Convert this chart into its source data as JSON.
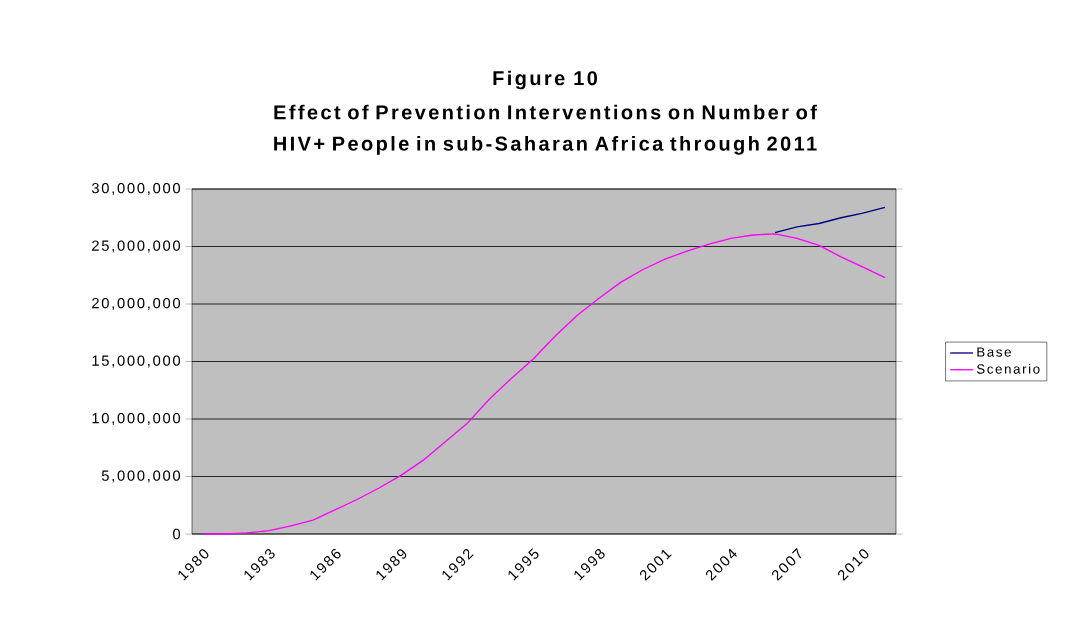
{
  "chart_data": {
    "type": "line",
    "title": "Figure 10",
    "subtitle": "Effect of Prevention Interventions on Number of HIV+ People in sub-Saharan Africa through 2011",
    "categories": [
      "1980",
      null,
      null,
      "1983",
      null,
      null,
      "1986",
      null,
      null,
      "1989",
      null,
      null,
      "1992",
      null,
      null,
      "1995",
      null,
      null,
      "1998",
      null,
      null,
      "2001",
      null,
      null,
      "2004",
      null,
      null,
      "2007",
      null,
      null,
      "2010",
      null
    ],
    "series": [
      {
        "name": "Base",
        "color": "#000080",
        "values": [
          null,
          null,
          null,
          null,
          null,
          null,
          null,
          null,
          null,
          null,
          null,
          null,
          null,
          null,
          null,
          null,
          null,
          null,
          null,
          null,
          null,
          null,
          null,
          null,
          null,
          null,
          26200000,
          26700000,
          27000000,
          27500000,
          27900000,
          28400000
        ]
      },
      {
        "name": "Scenario",
        "color": "#ff00ff",
        "values": [
          0,
          0,
          100000,
          300000,
          700000,
          1200000,
          2100000,
          3000000,
          4000000,
          5100000,
          6400000,
          8000000,
          9600000,
          11700000,
          13500000,
          15200000,
          17200000,
          19000000,
          20500000,
          21900000,
          23000000,
          23900000,
          24600000,
          25200000,
          25700000,
          26000000,
          26100000,
          25700000,
          25100000,
          24100000,
          23200000,
          22300000
        ]
      }
    ],
    "ylim": [
      0,
      30000000
    ],
    "yticks": [
      {
        "value": 0,
        "label": "0"
      },
      {
        "value": 5000000,
        "label": "5,000,000"
      },
      {
        "value": 10000000,
        "label": "10,000,000"
      },
      {
        "value": 15000000,
        "label": "15,000,000"
      },
      {
        "value": 20000000,
        "label": "20,000,000"
      },
      {
        "value": 25000000,
        "label": "25,000,000"
      },
      {
        "value": 30000000,
        "label": "30,000,000"
      }
    ],
    "grid": "y",
    "legend": "right",
    "marker": "none",
    "line_style": "solid"
  }
}
